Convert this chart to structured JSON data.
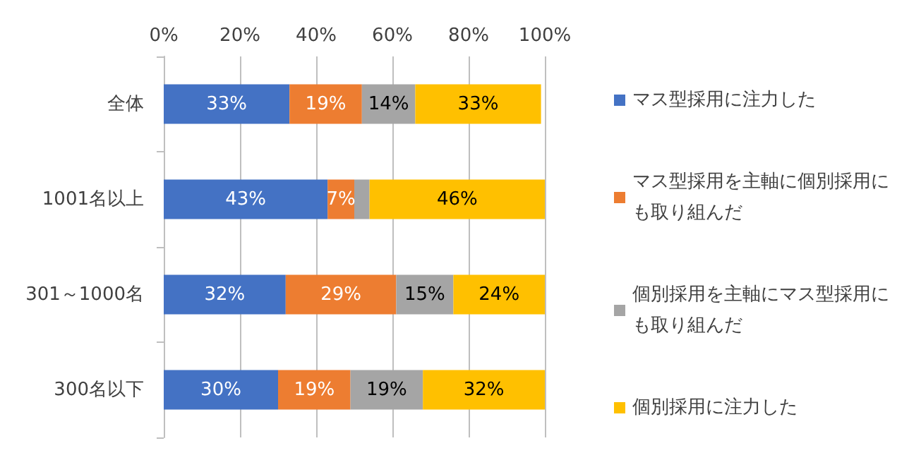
{
  "chart_data": {
    "type": "bar",
    "orientation": "horizontal",
    "stacked": true,
    "categories": [
      "全体",
      "1001名以上",
      "301～1000名",
      "300名以下"
    ],
    "series": [
      {
        "name": "マス型採用に注力した",
        "color": "#4472c4",
        "values": [
          33,
          43,
          32,
          30
        ],
        "value_labels": [
          "33%",
          "43%",
          "32%",
          "30%"
        ]
      },
      {
        "name": "マス型採用を主軸に個別採用にも取り組んだ",
        "color": "#ed7d31",
        "values": [
          19,
          7,
          29,
          19
        ],
        "value_labels": [
          "19%",
          "7%",
          "29%",
          "19%"
        ]
      },
      {
        "name": "個別採用を主軸にマス型採用にも取り組んだ",
        "color": "#a5a5a5",
        "values": [
          14,
          4,
          15,
          19
        ],
        "value_labels": [
          "14%",
          null,
          "15%",
          "19%"
        ]
      },
      {
        "name": "個別採用に注力した",
        "color": "#ffc000",
        "values": [
          33,
          46,
          24,
          32
        ],
        "value_labels": [
          "33%",
          "46%",
          "24%",
          "32%"
        ]
      }
    ],
    "xlim": [
      0,
      100
    ],
    "xticks": [
      {
        "value": 0,
        "label": "0%"
      },
      {
        "value": 20,
        "label": "20%"
      },
      {
        "value": 40,
        "label": "40%"
      },
      {
        "value": 60,
        "label": "60%"
      },
      {
        "value": 80,
        "label": "80%"
      },
      {
        "value": 100,
        "label": "100%"
      }
    ],
    "grid": "x",
    "legend": "right"
  }
}
